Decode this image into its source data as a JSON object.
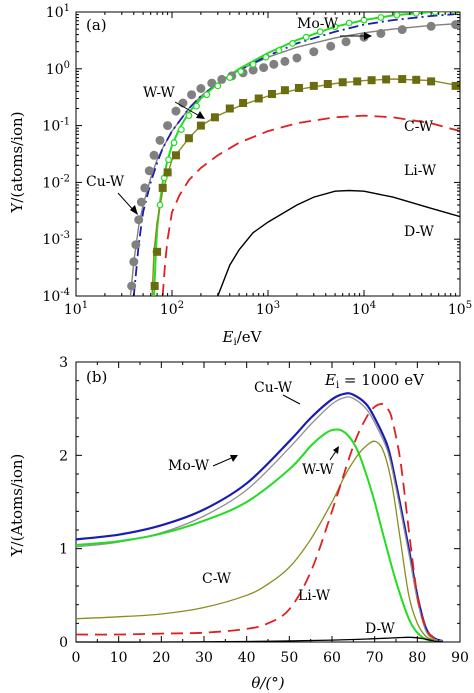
{
  "chart_data": [
    {
      "type": "line",
      "panel_label": "(a)",
      "xlabel": "E_i/eV",
      "ylabel": "Y/(atoms/ion)",
      "xscale": "log",
      "yscale": "log",
      "xlim": [
        10,
        100000
      ],
      "ylim": [
        0.0001,
        10
      ],
      "x_ticks": [
        "10^1",
        "10^2",
        "10^3",
        "10^4",
        "10^5"
      ],
      "y_ticks": [
        "10^-4",
        "10^-3",
        "10^-2",
        "10^-1",
        "10^0",
        "10^1"
      ],
      "series": [
        {
          "name": "Cu-W",
          "color": "#808080",
          "dash": "solid",
          "x": [
            37,
            40,
            45,
            50,
            60,
            70,
            80,
            100,
            150,
            200,
            300,
            500,
            1000,
            2000,
            5000,
            10000,
            20000,
            50000,
            100000
          ],
          "y": [
            0.0001,
            0.0004,
            0.0017,
            0.004,
            0.012,
            0.025,
            0.04,
            0.08,
            0.2,
            0.33,
            0.55,
            0.95,
            1.6,
            2.4,
            3.5,
            4.3,
            5.0,
            5.8,
            6.3
          ]
        },
        {
          "name": "Cu-W markers",
          "color": "#808080",
          "marker": "circle",
          "x": [
            38,
            40,
            42,
            45,
            48,
            52,
            58,
            65,
            75,
            90,
            110,
            130,
            160,
            200,
            260,
            330,
            420,
            550,
            700,
            900,
            1150,
            1500,
            2000,
            3000,
            4500,
            6500,
            10000,
            15000,
            25000,
            50000,
            90000
          ],
          "y": [
            0.00015,
            0.0004,
            0.0008,
            0.0022,
            0.0045,
            0.008,
            0.016,
            0.03,
            0.055,
            0.1,
            0.18,
            0.25,
            0.35,
            0.45,
            0.56,
            0.65,
            0.75,
            0.85,
            0.95,
            1.05,
            1.2,
            1.35,
            1.55,
            2.0,
            2.5,
            3.0,
            3.6,
            4.2,
            4.9,
            5.6,
            6.0
          ]
        },
        {
          "name": "Mo-W",
          "color": "#1c1cb4",
          "dash": "dashdot",
          "x": [
            40,
            45,
            50,
            60,
            70,
            80,
            100,
            150,
            200,
            300,
            500,
            1000,
            2000,
            5000,
            10000,
            20000,
            50000,
            100000
          ],
          "y": [
            0.0001,
            0.0008,
            0.003,
            0.01,
            0.022,
            0.04,
            0.08,
            0.2,
            0.33,
            0.55,
            0.95,
            1.7,
            2.8,
            4.5,
            6.0,
            7.2,
            8.5,
            9.3
          ]
        },
        {
          "name": "W-W",
          "color": "#22dd22",
          "dash": "solid",
          "x": [
            65,
            68,
            70,
            75,
            80,
            90,
            100,
            120,
            150,
            200,
            300,
            500,
            1000,
            2000,
            5000,
            10000,
            20000,
            50000,
            100000
          ],
          "y": [
            0.0001,
            0.0006,
            0.0015,
            0.0045,
            0.01,
            0.025,
            0.045,
            0.09,
            0.17,
            0.3,
            0.55,
            1.0,
            1.9,
            3.2,
            5.5,
            7.2,
            8.7,
            10,
            10.5
          ]
        },
        {
          "name": "W-W markers",
          "color": "#22dd22",
          "marker": "open-circle",
          "x": [
            68,
            75,
            83,
            92,
            105,
            125,
            150,
            180,
            230,
            300,
            400,
            520,
            700,
            950,
            1300,
            1800,
            2500,
            3500,
            5000,
            7000,
            10000,
            15000,
            22000,
            35000,
            55000,
            90000
          ],
          "y": [
            0.0006,
            0.004,
            0.012,
            0.025,
            0.05,
            0.085,
            0.15,
            0.22,
            0.35,
            0.5,
            0.7,
            0.9,
            1.2,
            1.6,
            2.1,
            2.8,
            3.6,
            4.5,
            5.5,
            6.4,
            7.2,
            8.0,
            8.8,
            9.5,
            10,
            10.3
          ]
        },
        {
          "name": "C-W",
          "color": "#8b8b1f",
          "dash": "solid",
          "x": [
            62,
            65,
            70,
            80,
            100,
            150,
            200,
            300,
            500,
            1000,
            2000,
            5000,
            10000,
            20000,
            50000,
            100000
          ],
          "y": [
            0.0001,
            0.0006,
            0.002,
            0.007,
            0.025,
            0.06,
            0.1,
            0.15,
            0.22,
            0.33,
            0.43,
            0.55,
            0.62,
            0.66,
            0.62,
            0.5
          ]
        },
        {
          "name": "C-W markers",
          "color": "#6b6b10",
          "marker": "square",
          "x": [
            66,
            70,
            80,
            90,
            110,
            150,
            200,
            280,
            400,
            550,
            800,
            1100,
            1500,
            2100,
            3000,
            4200,
            6000,
            8500,
            12000,
            17000,
            25000,
            35000,
            50000,
            90000
          ],
          "y": [
            0.00015,
            0.0006,
            0.008,
            0.015,
            0.03,
            0.06,
            0.1,
            0.14,
            0.2,
            0.25,
            0.3,
            0.36,
            0.42,
            0.46,
            0.5,
            0.54,
            0.58,
            0.6,
            0.63,
            0.65,
            0.66,
            0.64,
            0.6,
            0.5
          ]
        },
        {
          "name": "Li-W",
          "color": "#e02020",
          "dash": "dashed",
          "x": [
            80,
            85,
            90,
            100,
            120,
            150,
            200,
            300,
            500,
            1000,
            2000,
            5000,
            10000,
            20000,
            50000,
            100000
          ],
          "y": [
            0.0001,
            0.0004,
            0.001,
            0.003,
            0.006,
            0.011,
            0.018,
            0.03,
            0.05,
            0.08,
            0.11,
            0.14,
            0.15,
            0.14,
            0.11,
            0.08
          ]
        },
        {
          "name": "D-W",
          "color": "#000000",
          "dash": "solid",
          "x": [
            300,
            400,
            500,
            700,
            1000,
            2000,
            3000,
            5000,
            7000,
            10000,
            20000,
            50000,
            100000
          ],
          "y": [
            0.0001,
            0.00035,
            0.00065,
            0.0013,
            0.002,
            0.004,
            0.0055,
            0.007,
            0.0072,
            0.007,
            0.0055,
            0.0035,
            0.0025
          ]
        }
      ],
      "annotations": [
        "Mo-W",
        "W-W",
        "C-W",
        "Li-W",
        "Cu-W",
        "D-W"
      ]
    },
    {
      "type": "line",
      "panel_label": "(b)",
      "title": "E_i = 1000 eV",
      "xlabel": "θ/(°)",
      "ylabel": "Y/(Atoms/ion)",
      "xlim": [
        0,
        90
      ],
      "ylim": [
        0,
        3
      ],
      "x_ticks": [
        "0",
        "10",
        "20",
        "30",
        "40",
        "50",
        "60",
        "70",
        "80",
        "90"
      ],
      "y_ticks": [
        "0",
        "1",
        "2",
        "3"
      ],
      "series": [
        {
          "name": "Mo-W",
          "color": "#1c1cb4",
          "dash": "solid",
          "x": [
            0,
            10,
            20,
            30,
            40,
            50,
            55,
            60,
            63,
            65,
            68,
            70,
            73,
            75,
            78,
            80,
            82,
            84,
            86
          ],
          "y": [
            1.1,
            1.15,
            1.25,
            1.42,
            1.7,
            2.15,
            2.4,
            2.6,
            2.66,
            2.65,
            2.55,
            2.4,
            2.1,
            1.7,
            1.0,
            0.5,
            0.15,
            0.04,
            0.01
          ]
        },
        {
          "name": "Cu-W",
          "color": "#909090",
          "dash": "solid",
          "x": [
            0,
            10,
            20,
            30,
            40,
            50,
            55,
            60,
            63,
            65,
            68,
            70,
            73,
            75,
            78,
            80,
            82,
            84,
            86
          ],
          "y": [
            1.02,
            1.07,
            1.17,
            1.35,
            1.63,
            2.08,
            2.33,
            2.55,
            2.62,
            2.61,
            2.5,
            2.35,
            2.05,
            1.65,
            0.95,
            0.45,
            0.12,
            0.03,
            0.01
          ]
        },
        {
          "name": "W-W",
          "color": "#22dd22",
          "dash": "solid",
          "x": [
            0,
            10,
            20,
            30,
            40,
            50,
            55,
            58,
            60,
            62,
            64,
            66,
            68,
            70,
            72,
            75,
            78,
            80,
            82,
            84
          ],
          "y": [
            1.04,
            1.08,
            1.16,
            1.3,
            1.5,
            1.85,
            2.1,
            2.22,
            2.27,
            2.27,
            2.2,
            2.05,
            1.8,
            1.5,
            1.15,
            0.65,
            0.25,
            0.1,
            0.03,
            0.01
          ]
        },
        {
          "name": "C-W",
          "color": "#8b8b1f",
          "dash": "solid",
          "x": [
            0,
            10,
            20,
            30,
            40,
            45,
            50,
            55,
            60,
            63,
            66,
            68,
            70,
            72,
            74,
            76,
            78,
            80,
            82,
            84
          ],
          "y": [
            0.25,
            0.27,
            0.3,
            0.37,
            0.5,
            0.62,
            0.8,
            1.1,
            1.5,
            1.78,
            2.0,
            2.1,
            2.15,
            2.05,
            1.7,
            1.1,
            0.5,
            0.2,
            0.06,
            0.02
          ]
        },
        {
          "name": "Li-W",
          "color": "#e02020",
          "dash": "dashed",
          "x": [
            0,
            10,
            20,
            30,
            40,
            45,
            50,
            55,
            60,
            65,
            68,
            70,
            72,
            73,
            74,
            76,
            78,
            80,
            82,
            84
          ],
          "y": [
            0.08,
            0.08,
            0.09,
            0.1,
            0.14,
            0.2,
            0.35,
            0.75,
            1.4,
            2.1,
            2.4,
            2.52,
            2.55,
            2.5,
            2.4,
            1.95,
            1.2,
            0.5,
            0.15,
            0.04
          ]
        },
        {
          "name": "D-W",
          "color": "#000000",
          "dash": "solid",
          "x": [
            0,
            20,
            40,
            60,
            70,
            75,
            78,
            80,
            82,
            84,
            86
          ],
          "y": [
            0.0,
            0.0,
            0.005,
            0.02,
            0.035,
            0.045,
            0.05,
            0.045,
            0.03,
            0.01,
            0.0
          ]
        }
      ],
      "annotations": [
        "Cu-W",
        "Mo-W",
        "W-W",
        "C-W",
        "Li-W",
        "D-W"
      ]
    }
  ],
  "text": {
    "a_label": "(a)",
    "b_label": "(b)",
    "a_xlabel_E": "E",
    "a_xlabel_sub": "i",
    "a_xlabel_unit": "/eV",
    "a_ylabel": "Y/(atoms/ion)",
    "b_xlabel": "θ/(°)",
    "b_ylabel": "Y/(Atoms/ion)",
    "b_title_E": "E",
    "b_title_sub": "i",
    "b_title_rest": " = 1000 eV",
    "a_ann_mo": "Mo-W",
    "a_ann_ww": "W-W",
    "a_ann_cw": "C-W",
    "a_ann_li": "Li-W",
    "a_ann_cu": "Cu-W",
    "a_ann_dw": "D-W",
    "b_ann_cu": "Cu-W",
    "b_ann_mo": "Mo-W",
    "b_ann_ww": "W-W",
    "b_ann_cw": "C-W",
    "b_ann_li": "Li-W",
    "b_ann_dw": "D-W"
  }
}
